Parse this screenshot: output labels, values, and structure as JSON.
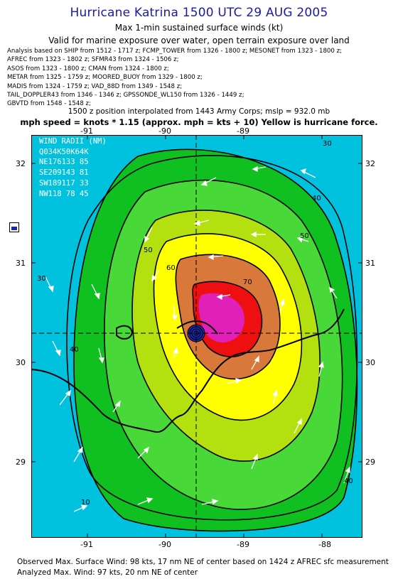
{
  "header": {
    "title": "Hurricane Katrina 1500 UTC 29 AUG 2005",
    "subtitle": "Max 1-min sustained surface winds (kt)",
    "validity": "Valid for marine exposure over water, open terrain exposure over land"
  },
  "sources": [
    "Analysis based on  SHIP from 1512 - 1717 z;  FCMP_TOWER from 1326 - 1800 z;  MESONET from 1323 - 1800 z;",
    "AFREC from 1323 - 1802 z;  SFMR43 from 1324 - 1506 z;",
    "ASOS from 1323 - 1800 z;  CMAN from 1324 - 1800 z;",
    "METAR from 1325 - 1759 z;  MOORED_BUOY from 1329 - 1800 z;",
    "MADIS from 1324 - 1759 z;  VAD_88D from 1349 - 1548 z;",
    "TAIL_DOPPLER43 from 1346 - 1346 z;  GPSSONDE_WL150 from 1326 - 1449 z;",
    "GBVTD from 1548 - 1548 z;"
  ],
  "position_note": "1500 z position interpolated from 1443 Army Corps; mslp = 932.0 mb",
  "conversion_note": "mph speed = knots * 1.15 (approx. mph = kts + 10)  Yellow is hurricane force.",
  "wind_radii": {
    "header": "WIND RADII (NM)",
    "rows": [
      "Q034K50K64K",
      "NE176133 85",
      "SE209143 81",
      "SW189117 33",
      "NW118 78 45"
    ]
  },
  "axes": {
    "lon_labels_top": [
      "-91",
      "-90",
      "-89"
    ],
    "lon_labels_bottom": [
      "-91",
      "-90",
      "-89",
      "-88"
    ],
    "lat_labels_left": [
      "32",
      "31",
      "30",
      "29"
    ],
    "lat_labels_right": [
      "32",
      "31",
      "30",
      "29"
    ]
  },
  "contour_labels": [
    "30",
    "40",
    "50",
    "60",
    "70",
    "50",
    "40",
    "30",
    "40",
    "10"
  ],
  "colors": {
    "title": "#1a1aa8",
    "cyan": "#00e8f0",
    "deep_cyan": "#00bfe0",
    "green": "#18c81a",
    "light_green": "#58e040",
    "yellow_green": "#b8e010",
    "yellow": "#ffff00",
    "orange": "#d8783a",
    "red": "#ee1010",
    "magenta": "#e020b8"
  },
  "footer": {
    "observed": "Observed Max. Surface Wind: 98 kts, 17 nm NE of center based on 1424 z AFREC sfc measurement",
    "analyzed": "Analyzed Max. Wind: 97 kts, 20 nm NE of center"
  }
}
